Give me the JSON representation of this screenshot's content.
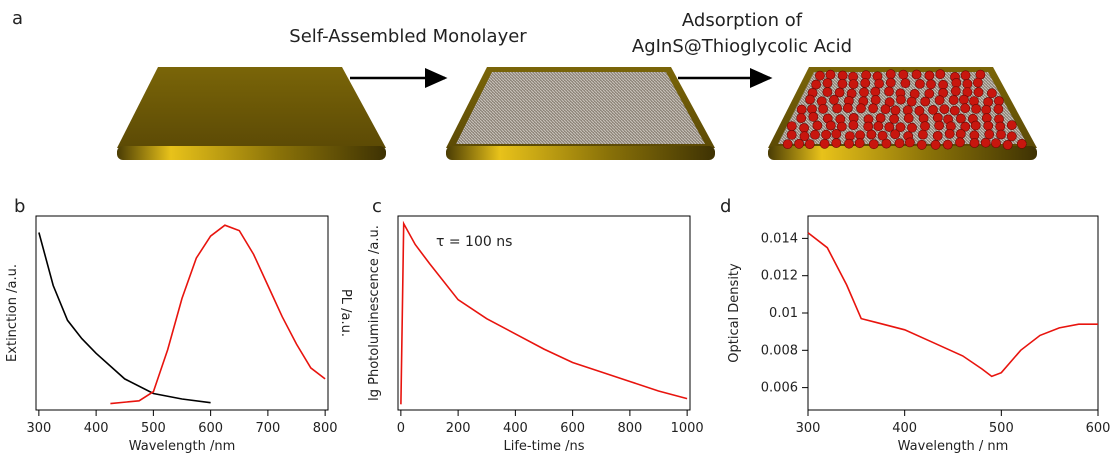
{
  "panel_a": {
    "label": "a",
    "step_1": "Self-Assembled Monolayer",
    "step_2_line_1": "Adsorption of",
    "step_2_line_2": "AgInS@Thioglycolic Acid"
  },
  "chart_data": [
    {
      "type": "line",
      "label": "b",
      "xlabel": "Wavelength /nm",
      "ylabel": "Extinction /a.u.",
      "y2label": "PL /a.u.",
      "xlim": [
        295,
        805
      ],
      "xticks": [
        300,
        400,
        500,
        600,
        700,
        800
      ],
      "ylim": [
        -0.03,
        1.03
      ],
      "y2lim": [
        -0.03,
        1.03
      ],
      "series": [
        {
          "color": "#000000",
          "x": [
            300,
            325,
            350,
            375,
            400,
            450,
            500,
            550,
            600
          ],
          "values": [
            0.94,
            0.65,
            0.46,
            0.36,
            0.28,
            0.14,
            0.06,
            0.03,
            0.01
          ]
        },
        {
          "color": "#e8140e",
          "axis": "y2",
          "x": [
            425,
            475,
            500,
            525,
            550,
            575,
            600,
            625,
            650,
            675,
            700,
            725,
            750,
            775,
            800
          ],
          "values": [
            0.005,
            0.02,
            0.07,
            0.3,
            0.58,
            0.8,
            0.92,
            0.98,
            0.95,
            0.82,
            0.65,
            0.48,
            0.33,
            0.2,
            0.14
          ]
        }
      ]
    },
    {
      "type": "line",
      "label": "c",
      "xlabel": "Life-time /ns",
      "ylabel": "lg Photoluminescence /a.u.",
      "annotation": "τ = 100 ns",
      "xlim": [
        -10,
        1010
      ],
      "xticks": [
        0,
        200,
        400,
        600,
        800,
        1000
      ],
      "ylim": [
        0,
        1.02
      ],
      "series": [
        {
          "color": "#e8140e",
          "x": [
            0,
            5,
            10,
            50,
            100,
            200,
            300,
            400,
            500,
            600,
            700,
            800,
            900,
            1000
          ],
          "values": [
            0.03,
            0.5,
            0.98,
            0.87,
            0.77,
            0.58,
            0.48,
            0.4,
            0.32,
            0.25,
            0.2,
            0.15,
            0.1,
            0.06
          ]
        }
      ]
    },
    {
      "type": "line",
      "label": "d",
      "xlabel": "Wavelength / nm",
      "ylabel": "Optical Density",
      "xlim": [
        300,
        600
      ],
      "xticks": [
        300,
        400,
        500,
        600
      ],
      "ylim": [
        0.0048,
        0.0152
      ],
      "yticks": [
        0.006,
        0.008,
        0.01,
        0.012,
        0.014
      ],
      "series": [
        {
          "color": "#e8140e",
          "x": [
            300,
            320,
            340,
            355,
            370,
            400,
            430,
            460,
            480,
            490,
            500,
            520,
            540,
            560,
            580,
            600
          ],
          "values": [
            0.0143,
            0.0135,
            0.0115,
            0.0097,
            0.0095,
            0.0091,
            0.0084,
            0.0077,
            0.007,
            0.0066,
            0.0068,
            0.008,
            0.0088,
            0.0092,
            0.0094,
            0.0094
          ]
        }
      ]
    }
  ]
}
